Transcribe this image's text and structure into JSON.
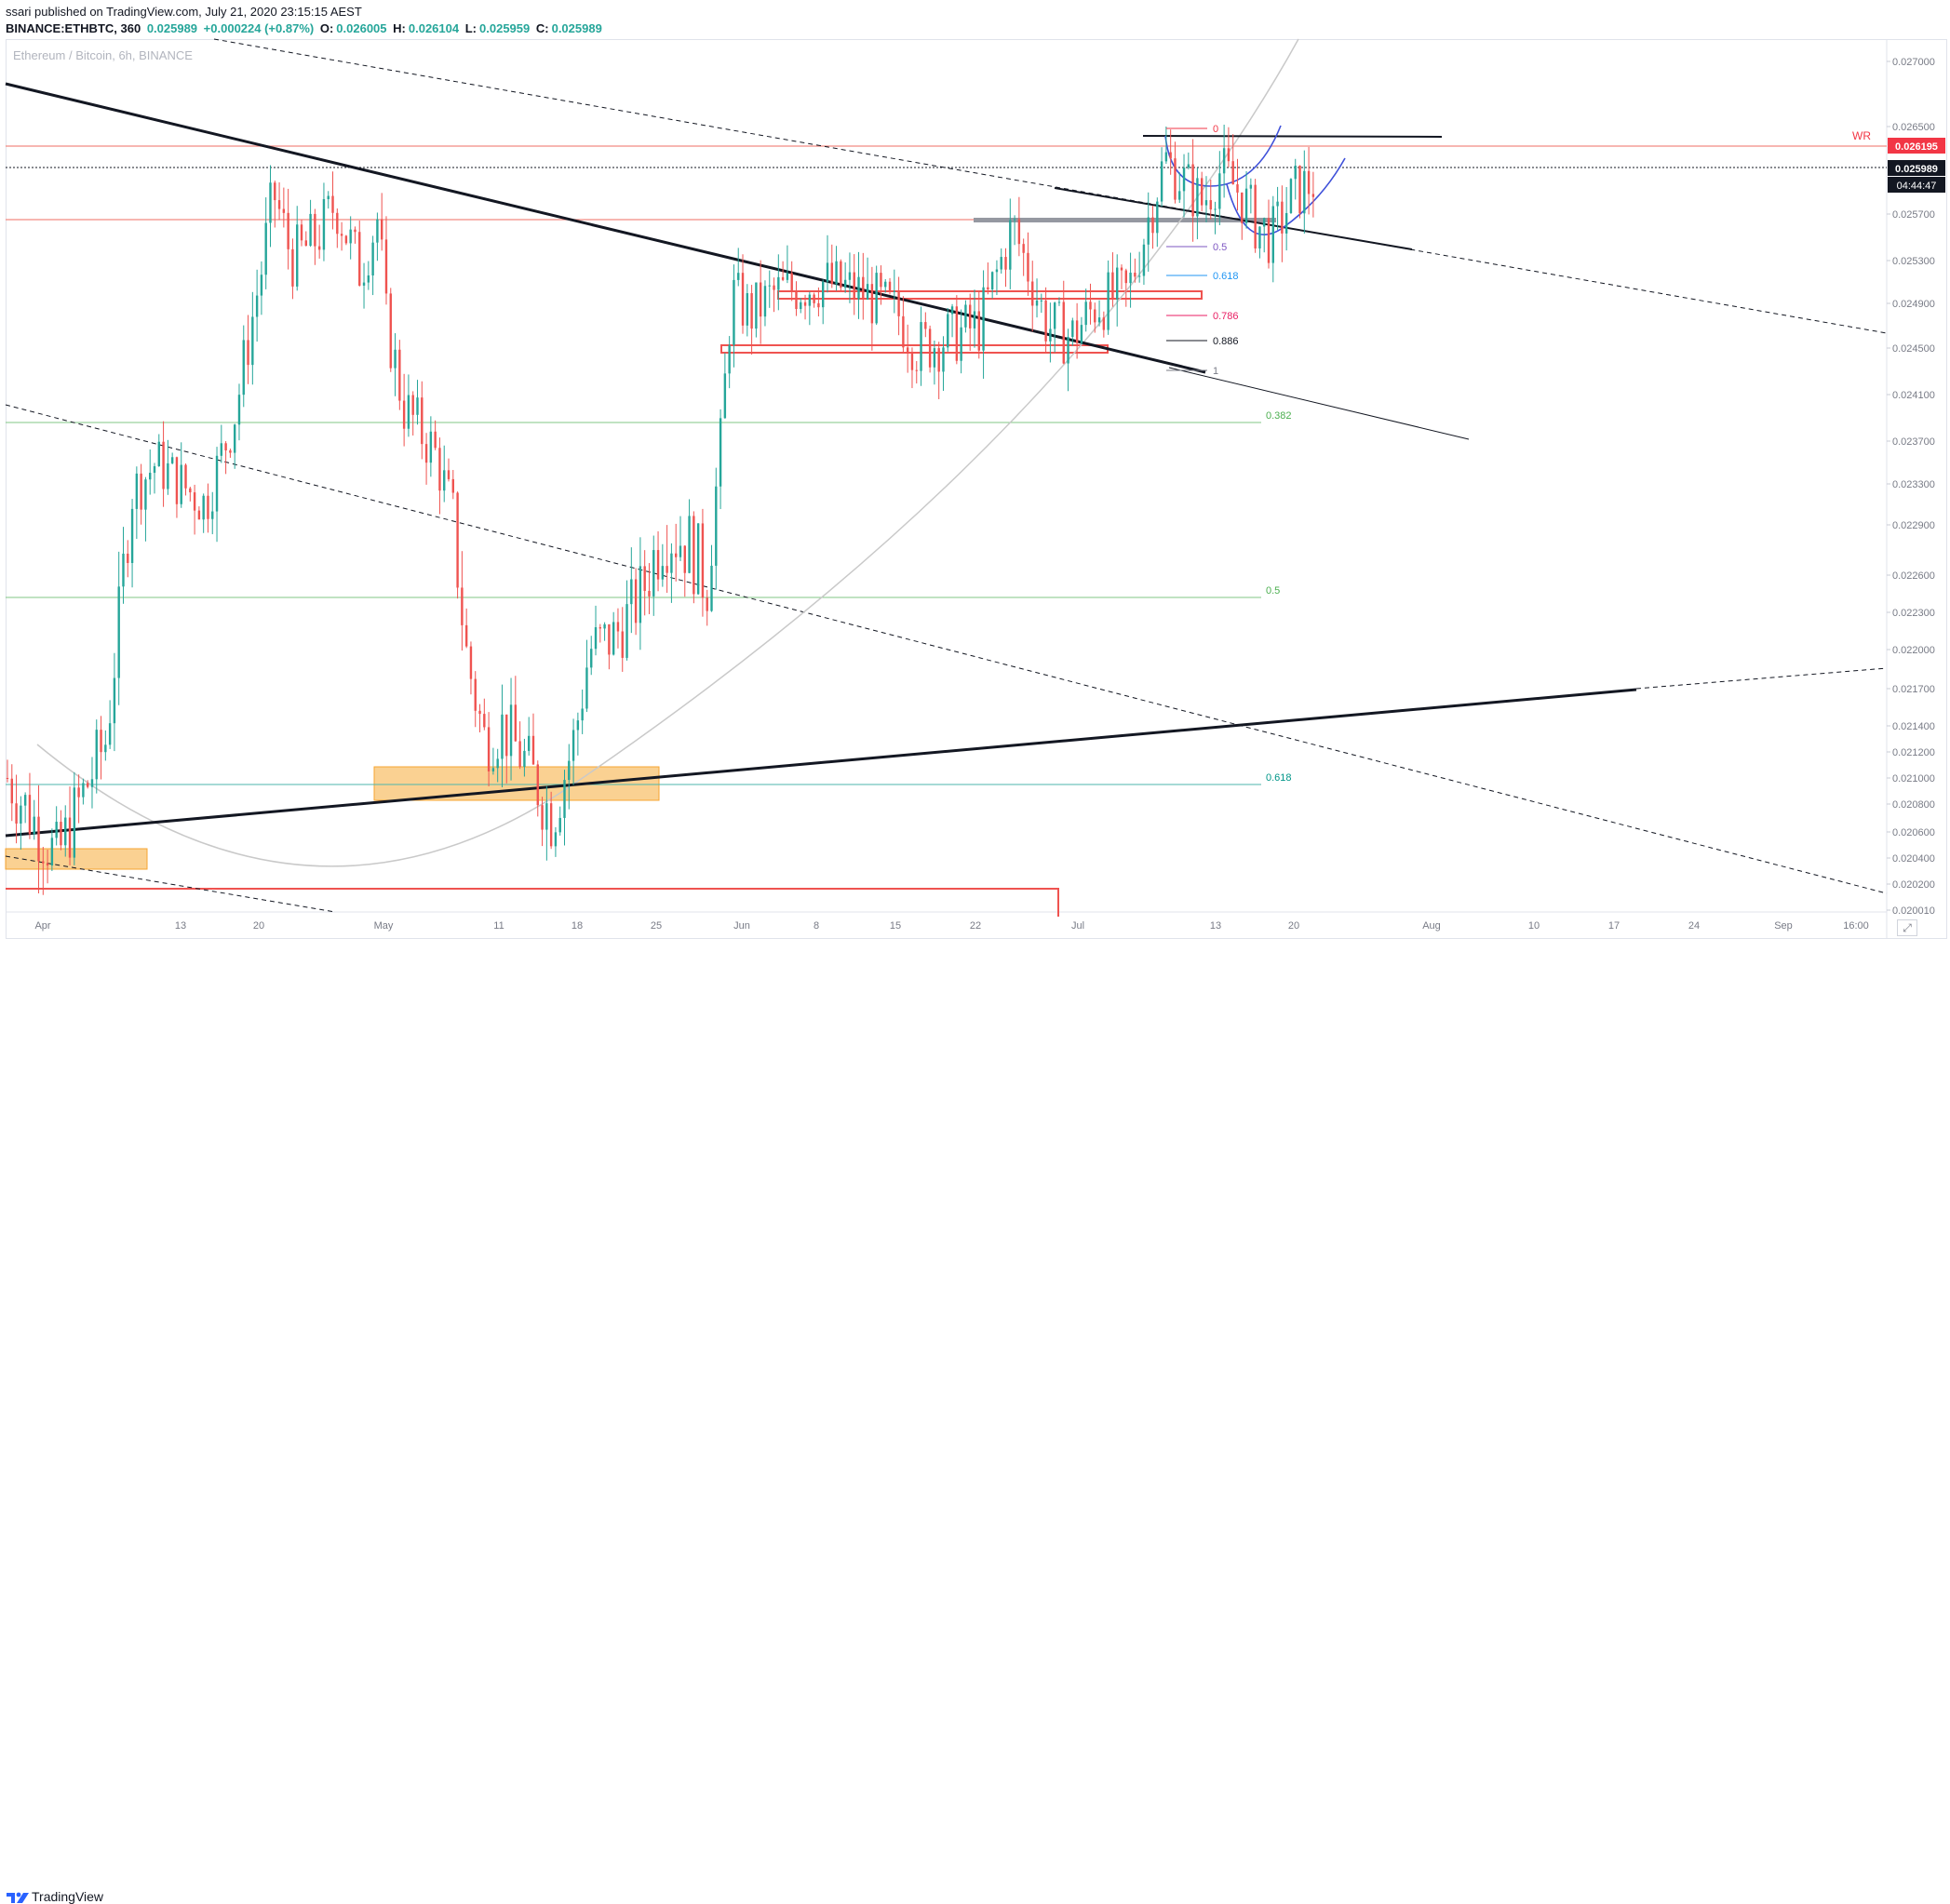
{
  "header": {
    "published": "ssari published on TradingView.com, July 21, 2020 23:15:15 AEST",
    "symbol": "BINANCE:ETHBTC, 360",
    "price": "0.025989",
    "change": "+0.000224 (+0.87%)",
    "o_label": "O:",
    "o": "0.026005",
    "h_label": "H:",
    "h": "0.026104",
    "l_label": "L:",
    "l": "0.025959",
    "c_label": "C:",
    "c": "0.025989"
  },
  "watermark": "Ethereum / Bitcoin, 6h, BINANCE",
  "footer": {
    "brand": "TradingView"
  },
  "corner_button": "⤢",
  "colors": {
    "up": "#26a69a",
    "down": "#ef5350",
    "accent_red": "#f23645",
    "orange_box": "#f7b24a"
  },
  "chart_data": {
    "type": "candlestick",
    "title": "Ethereum / Bitcoin, 6h, BINANCE",
    "yaxis_ticks": [
      "0.027000",
      "0.026500",
      "0.025700",
      "0.025300",
      "0.024900",
      "0.024500",
      "0.024100",
      "0.023700",
      "0.023300",
      "0.022900",
      "0.022600",
      "0.022300",
      "0.022000",
      "0.021700",
      "0.021400",
      "0.021200",
      "0.021000",
      "0.020800",
      "0.020600",
      "0.020400",
      "0.020200",
      "0.020010"
    ],
    "xaxis_ticks": [
      "Apr",
      "13",
      "20",
      "May",
      "11",
      "18",
      "25",
      "Jun",
      "8",
      "15",
      "22",
      "Jul",
      "13",
      "20",
      "Aug",
      "10",
      "17",
      "24",
      "Sep",
      "16:00"
    ],
    "price_labels": [
      {
        "label": "WR",
        "value": "0.026195",
        "color": "#f23645"
      },
      {
        "label": "",
        "value": "0.025989",
        "color": "#131722"
      },
      {
        "label": "",
        "value": "04:44:47",
        "color": "#131722"
      }
    ],
    "fib_levels_small": [
      {
        "label": "0",
        "color": "#f23645"
      },
      {
        "label": "0.5",
        "color": "#7e57c2"
      },
      {
        "label": "0.618",
        "color": "#2196f3"
      },
      {
        "label": "0.786",
        "color": "#e91e63"
      },
      {
        "label": "0.886",
        "color": "#131722"
      },
      {
        "label": "1",
        "color": "#787b86"
      }
    ],
    "fib_levels_large": [
      {
        "label": "0.382",
        "color": "#4caf50"
      },
      {
        "label": "0.5",
        "color": "#4caf50"
      },
      {
        "label": "0.618",
        "color": "#009688"
      }
    ],
    "path_closes": [
      [
        0,
        0.021
      ],
      [
        40,
        0.0204
      ],
      [
        80,
        0.0213
      ],
      [
        100,
        0.0232
      ],
      [
        120,
        0.0235
      ],
      [
        160,
        0.0231
      ],
      [
        185,
        0.024
      ],
      [
        205,
        0.0252
      ],
      [
        215,
        0.0259
      ],
      [
        230,
        0.0253
      ],
      [
        250,
        0.0255
      ],
      [
        265,
        0.0258
      ],
      [
        285,
        0.0252
      ],
      [
        300,
        0.0257
      ],
      [
        305,
        0.0248
      ],
      [
        320,
        0.024
      ],
      [
        345,
        0.0236
      ],
      [
        360,
        0.023
      ],
      [
        370,
        0.022
      ],
      [
        385,
        0.0213
      ],
      [
        400,
        0.0214
      ],
      [
        420,
        0.0211
      ],
      [
        440,
        0.0207
      ],
      [
        458,
        0.0213
      ],
      [
        470,
        0.022
      ],
      [
        490,
        0.0221
      ],
      [
        510,
        0.0224
      ],
      [
        530,
        0.0229
      ],
      [
        550,
        0.0228
      ],
      [
        565,
        0.0225
      ],
      [
        575,
        0.0235
      ],
      [
        585,
        0.025
      ],
      [
        600,
        0.0248
      ],
      [
        620,
        0.025
      ],
      [
        660,
        0.0251
      ],
      [
        690,
        0.025
      ],
      [
        720,
        0.0248
      ],
      [
        735,
        0.0245
      ],
      [
        760,
        0.0246
      ],
      [
        785,
        0.0247
      ],
      [
        800,
        0.0252
      ],
      [
        812,
        0.0256
      ],
      [
        825,
        0.0252
      ],
      [
        840,
        0.0247
      ],
      [
        860,
        0.0246
      ],
      [
        880,
        0.0249
      ],
      [
        905,
        0.025
      ],
      [
        920,
        0.0256
      ],
      [
        935,
        0.0262
      ],
      [
        950,
        0.026
      ],
      [
        965,
        0.0258
      ],
      [
        980,
        0.0261
      ],
      [
        995,
        0.0259
      ],
      [
        1010,
        0.0256
      ],
      [
        1022,
        0.0255
      ],
      [
        1040,
        0.0259
      ],
      [
        1057,
        0.026
      ]
    ]
  }
}
